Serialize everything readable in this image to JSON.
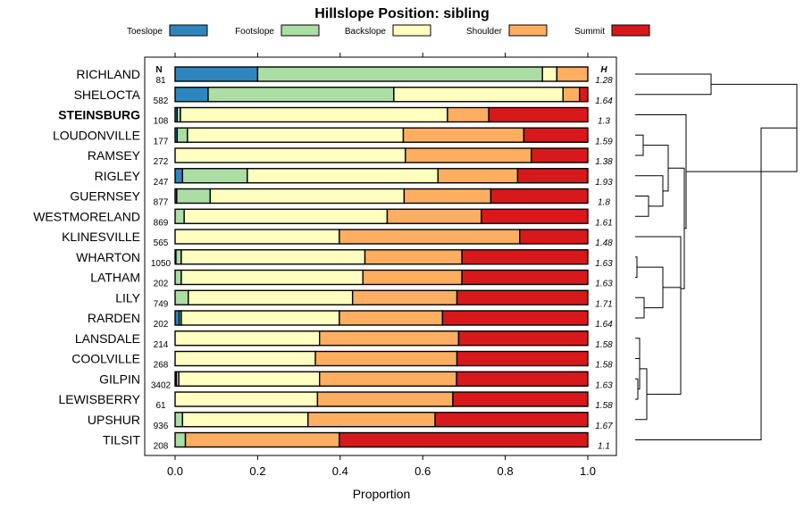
{
  "chart_data": {
    "type": "bar",
    "stacked": true,
    "orientation": "horizontal",
    "title": "Hillslope Position: sibling",
    "xlabel": "Proportion",
    "ylabel": "",
    "xlim": [
      0,
      1
    ],
    "x_ticks": [
      "0.0",
      "0.2",
      "0.4",
      "0.6",
      "0.8",
      "1.0"
    ],
    "n_header": "N",
    "h_header": "H",
    "highlight_category": "STEINSBURG",
    "legend": [
      {
        "name": "Toeslope",
        "color": "#2f86be"
      },
      {
        "name": "Footslope",
        "color": "#abdda4"
      },
      {
        "name": "Backslope",
        "color": "#ffffbf"
      },
      {
        "name": "Shoulder",
        "color": "#fdae61"
      },
      {
        "name": "Summit",
        "color": "#d7191c"
      }
    ],
    "categories": [
      "RICHLAND",
      "SHELOCTA",
      "STEINSBURG",
      "LOUDONVILLE",
      "RAMSEY",
      "RIGLEY",
      "GUERNSEY",
      "WESTMORELAND",
      "KLINESVILLE",
      "WHARTON",
      "LATHAM",
      "LILY",
      "RARDEN",
      "LANSDALE",
      "COOLVILLE",
      "GILPIN",
      "LEWISBERRY",
      "UPSHUR",
      "TILSIT"
    ],
    "n": [
      "81",
      "582",
      "108",
      "177",
      "272",
      "247",
      "877",
      "869",
      "565",
      "1050",
      "202",
      "749",
      "202",
      "214",
      "268",
      "3402",
      "61",
      "936",
      "208"
    ],
    "h": [
      "1.28",
      "1.64",
      "1.3",
      "1.59",
      "1.38",
      "1.93",
      "1.8",
      "1.61",
      "1.48",
      "1.63",
      "1.63",
      "1.71",
      "1.64",
      "1.58",
      "1.58",
      "1.63",
      "1.58",
      "1.67",
      "1.1"
    ],
    "series": [
      {
        "name": "Toeslope",
        "values": [
          0.2,
          0.08,
          0.005,
          0.005,
          0.0,
          0.018,
          0.004,
          0.0,
          0.0,
          0.002,
          0.0,
          0.0,
          0.01,
          0.0,
          0.0,
          0.003,
          0.0,
          0.0,
          0.0
        ]
      },
      {
        "name": "Footslope",
        "values": [
          0.69,
          0.45,
          0.008,
          0.025,
          0.0,
          0.157,
          0.081,
          0.022,
          0.0,
          0.013,
          0.015,
          0.032,
          0.005,
          0.0,
          0.0,
          0.006,
          0.0,
          0.018,
          0.025
        ]
      },
      {
        "name": "Backslope",
        "values": [
          0.035,
          0.41,
          0.647,
          0.523,
          0.558,
          0.462,
          0.47,
          0.492,
          0.398,
          0.445,
          0.44,
          0.398,
          0.383,
          0.35,
          0.34,
          0.341,
          0.345,
          0.304,
          0.0
        ]
      },
      {
        "name": "Shoulder",
        "values": [
          0.075,
          0.04,
          0.1,
          0.292,
          0.305,
          0.193,
          0.21,
          0.228,
          0.437,
          0.235,
          0.24,
          0.253,
          0.25,
          0.337,
          0.343,
          0.332,
          0.328,
          0.308,
          0.373
        ]
      },
      {
        "name": "Summit",
        "values": [
          0.0,
          0.02,
          0.24,
          0.155,
          0.137,
          0.17,
          0.235,
          0.258,
          0.165,
          0.305,
          0.305,
          0.317,
          0.352,
          0.313,
          0.317,
          0.318,
          0.327,
          0.37,
          0.602
        ]
      }
    ]
  }
}
